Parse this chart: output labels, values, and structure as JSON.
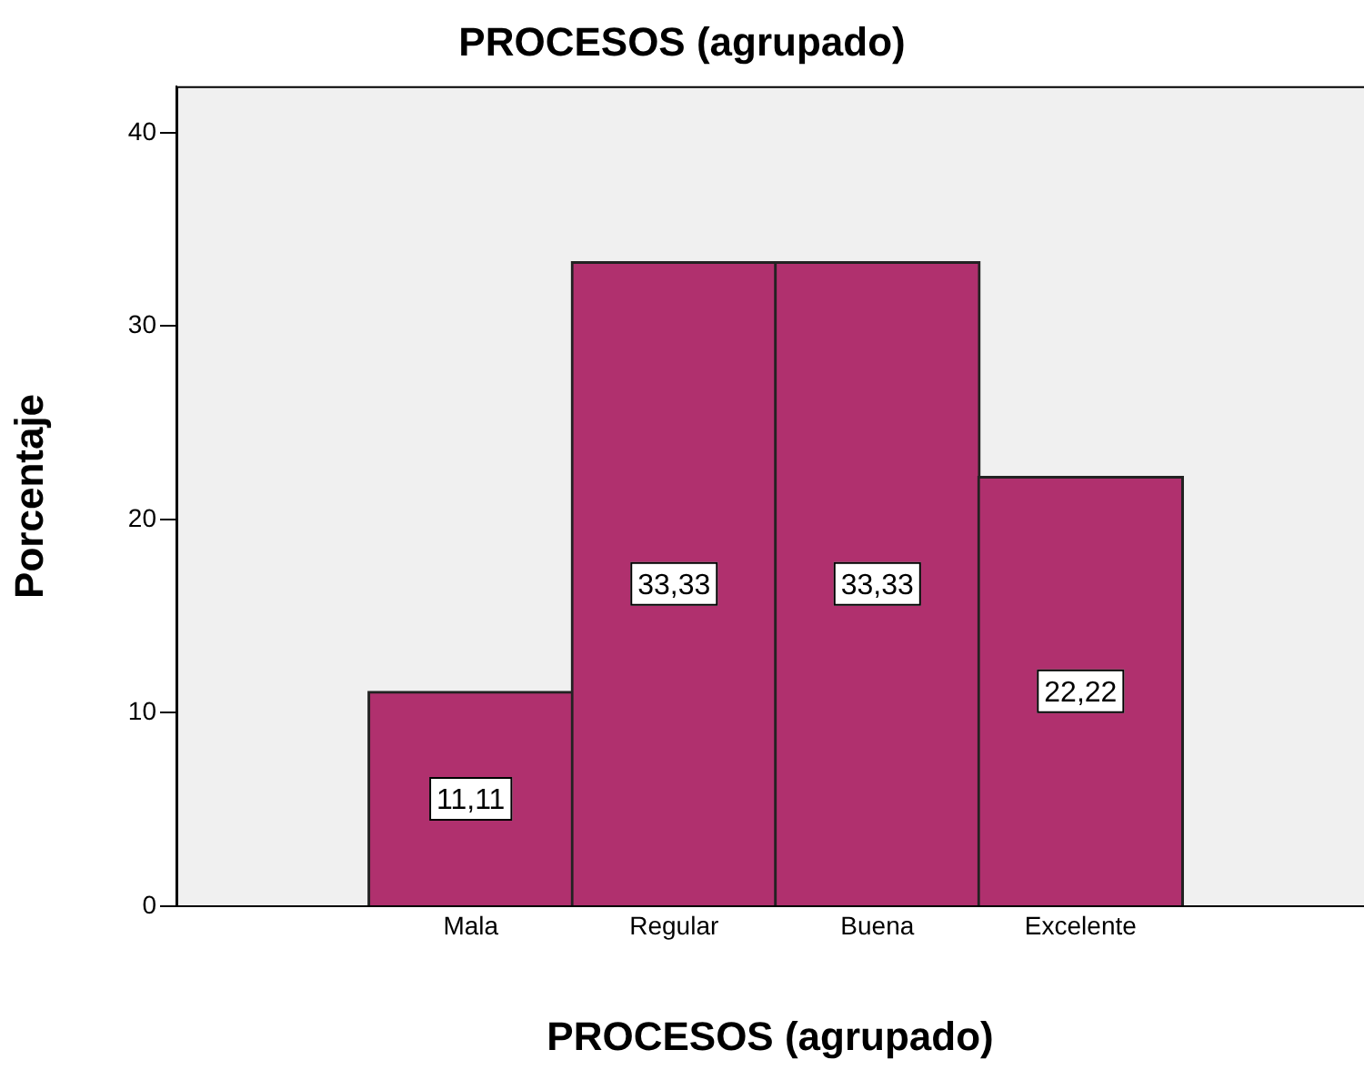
{
  "chart_data": {
    "type": "bar",
    "title": "PROCESOS (agrupado)",
    "xlabel": "PROCESOS (agrupado)",
    "ylabel": "Porcentaje",
    "categories": [
      "Mala",
      "Regular",
      "Buena",
      "Excelente"
    ],
    "values": [
      11.11,
      33.33,
      33.33,
      22.22
    ],
    "value_labels": [
      "11,11",
      "33,33",
      "33,33",
      "22,22"
    ],
    "color": "#b0306e",
    "ylim": [
      0,
      42.4
    ],
    "yticks": [
      0,
      10,
      20,
      30,
      40
    ],
    "grid": false,
    "legend": false
  }
}
